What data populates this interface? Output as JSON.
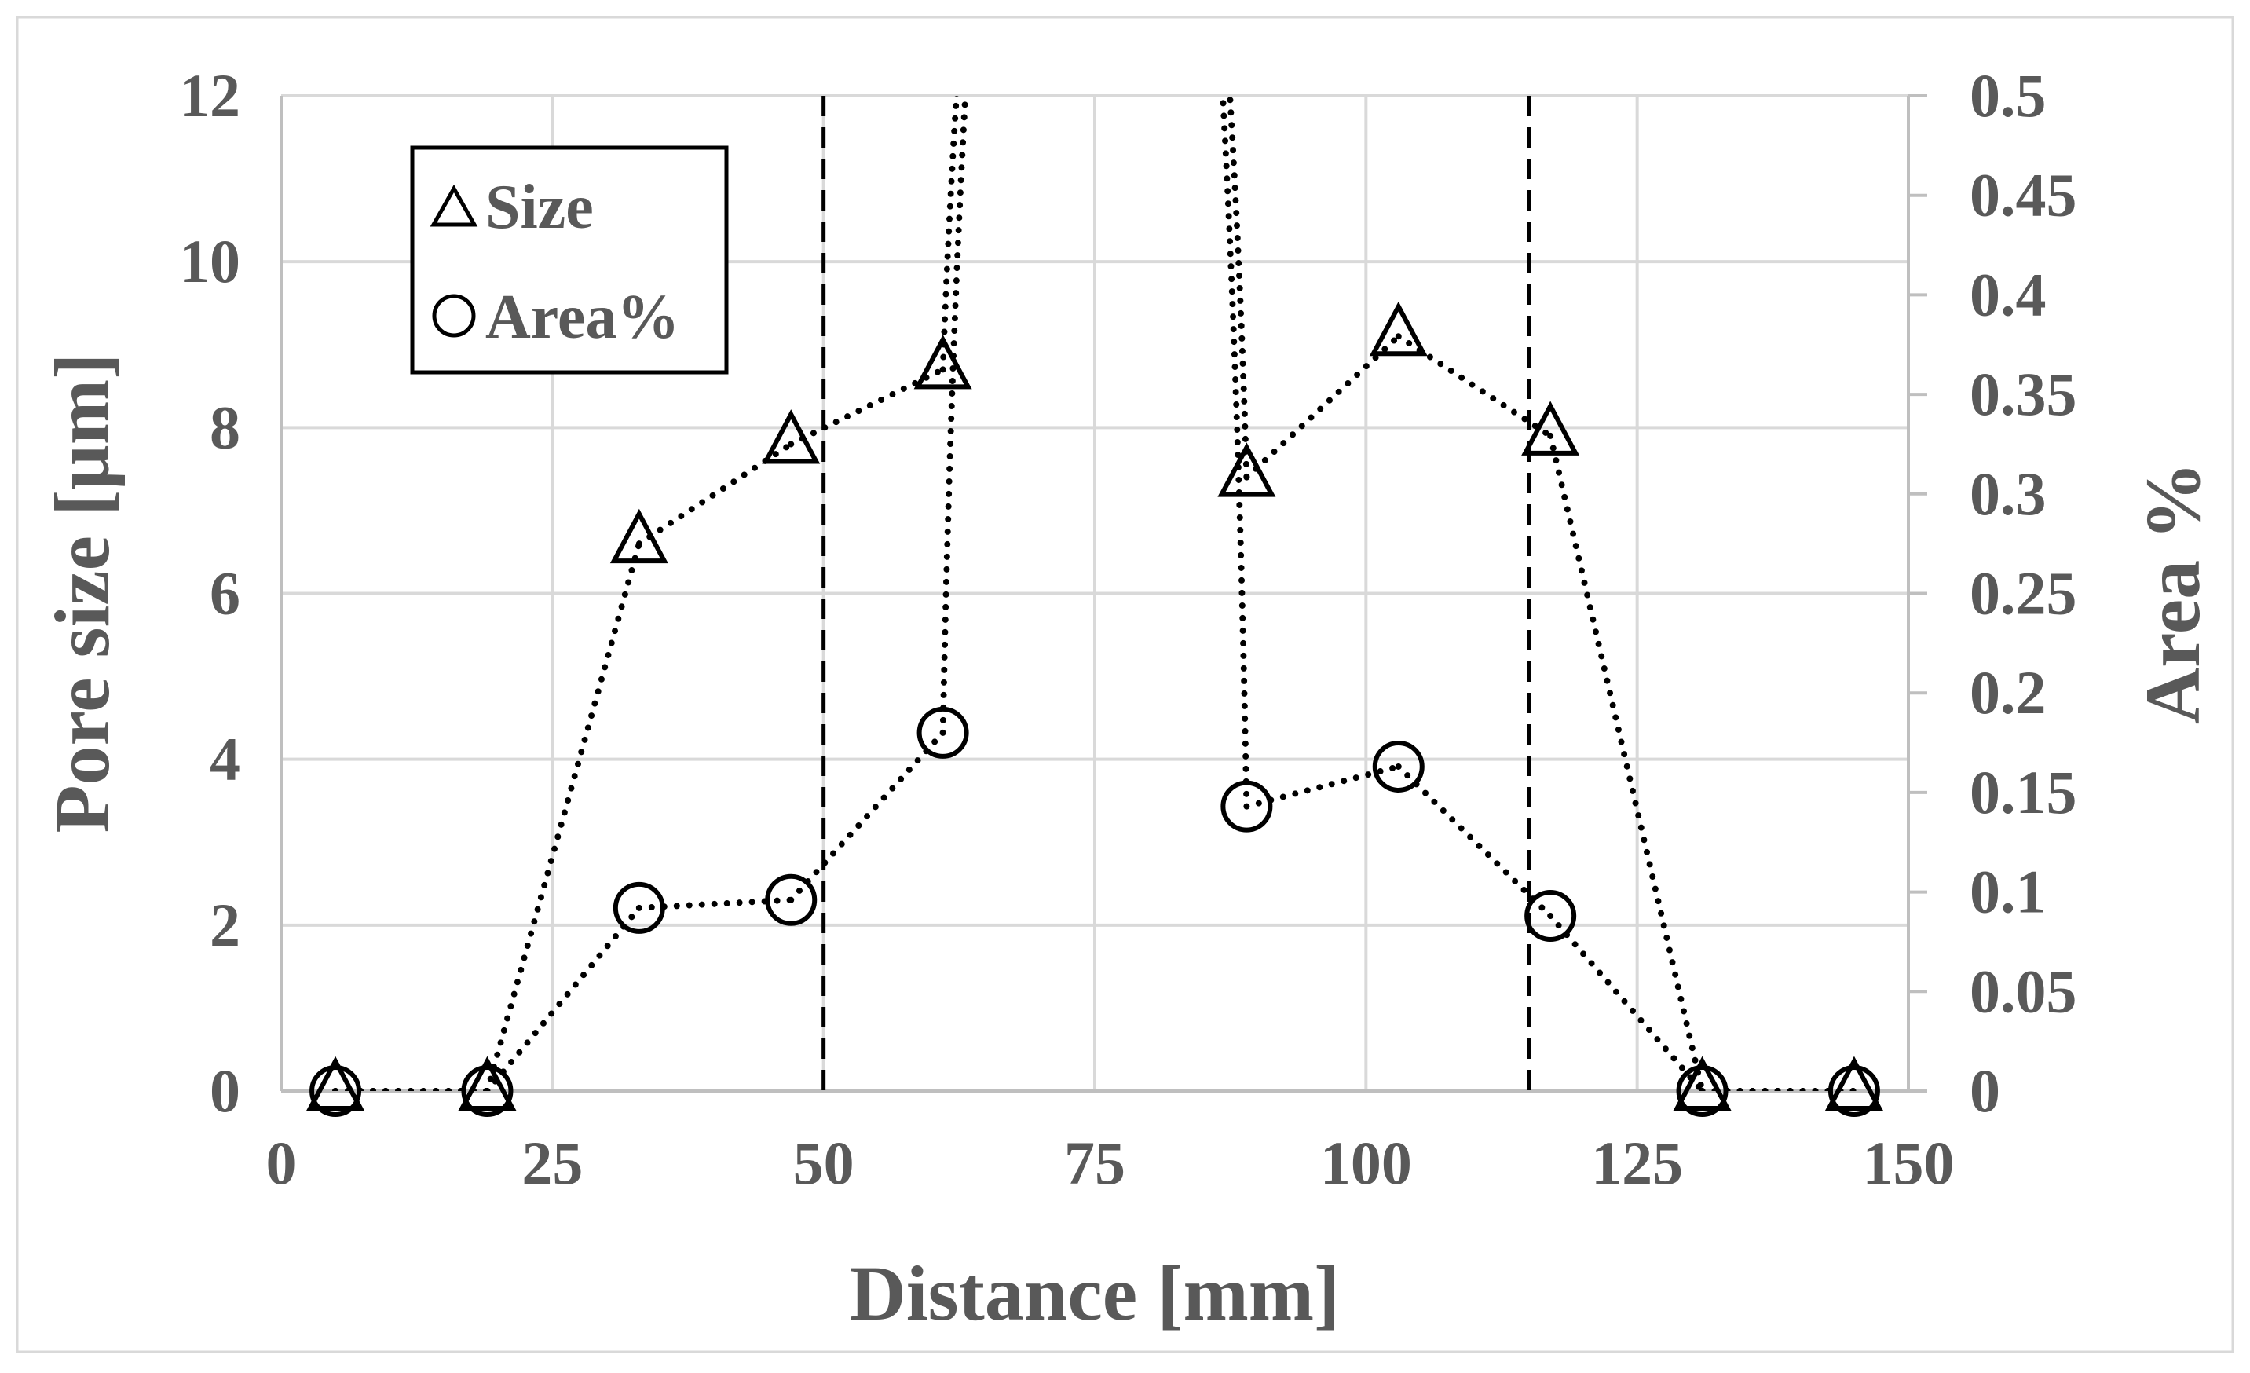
{
  "chart_data": {
    "type": "scatter",
    "xlabel": "Distance [mm]",
    "ylabel": "Pore size [µm]",
    "y2label": "Area %",
    "xlim": [
      0,
      150
    ],
    "ylim": [
      0,
      12
    ],
    "y2lim": [
      0,
      0.5
    ],
    "x_ticks": [
      "0",
      "25",
      "50",
      "75",
      "100",
      "125",
      "150"
    ],
    "y_ticks": [
      "0",
      "2",
      "4",
      "6",
      "8",
      "10",
      "12"
    ],
    "y2_ticks": [
      "0",
      "0.05",
      "0.1",
      "0.15",
      "0.2",
      "0.25",
      "0.3",
      "0.35",
      "0.4",
      "0.45",
      "0.5"
    ],
    "grid": true,
    "legend_position": "top-left",
    "reference_lines_x": [
      50,
      115
    ],
    "series": [
      {
        "name": "Size",
        "axis": "left",
        "marker": "triangle",
        "line_style": "dotted",
        "x": [
          5,
          19,
          33,
          47,
          61,
          89,
          103,
          117,
          131,
          145
        ],
        "y": [
          0,
          0,
          6.6,
          7.8,
          8.7,
          7.4,
          9.1,
          7.9,
          0,
          0
        ],
        "offscale_segment_between": [
          61,
          89
        ]
      },
      {
        "name": "Area%",
        "axis": "right",
        "marker": "circle",
        "line_style": "dotted",
        "x": [
          5,
          19,
          33,
          47,
          61,
          89,
          103,
          117,
          131,
          145
        ],
        "y": [
          0,
          0,
          0.092,
          0.096,
          0.18,
          0.143,
          0.163,
          0.088,
          0,
          0
        ],
        "offscale_segment_between": [
          61,
          89
        ]
      }
    ]
  }
}
